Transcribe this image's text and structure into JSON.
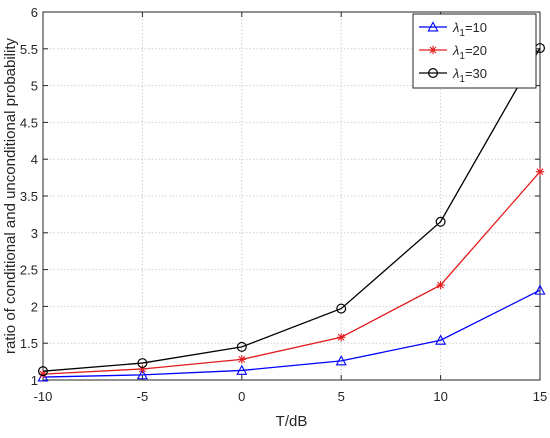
{
  "chart_data": {
    "type": "line",
    "title": "",
    "xlabel": "T/dB",
    "ylabel": "ratio of conditional and unconditional probability",
    "x": [
      -10,
      -5,
      0,
      5,
      10,
      15
    ],
    "xlim": [
      -10,
      15
    ],
    "ylim": [
      1,
      6
    ],
    "xticks": [
      -10,
      -5,
      0,
      5,
      10,
      15
    ],
    "yticks": [
      1,
      1.5,
      2,
      2.5,
      3,
      3.5,
      4,
      4.5,
      5,
      5.5,
      6
    ],
    "xtick_labels": [
      "-10",
      "-5",
      "0",
      "5",
      "10",
      "15"
    ],
    "ytick_labels": [
      "1",
      "1.5",
      "2",
      "2.5",
      "3",
      "3.5",
      "4",
      "4.5",
      "5",
      "5.5",
      "6"
    ],
    "grid": true,
    "grid_style": "dotted",
    "legend_position": "top-right",
    "series": [
      {
        "name": "λ1=10",
        "legend_symbol": "λ",
        "legend_sub": "1",
        "legend_rest": "=10",
        "color": "#0000ff",
        "marker": "triangle",
        "values": [
          1.04,
          1.07,
          1.13,
          1.26,
          1.54,
          2.22
        ]
      },
      {
        "name": "λ1=20",
        "legend_symbol": "λ",
        "legend_sub": "1",
        "legend_rest": "=20",
        "color": "#e31a1c",
        "marker": "asterisk",
        "values": [
          1.08,
          1.15,
          1.28,
          1.58,
          2.29,
          3.83
        ]
      },
      {
        "name": "λ1=30",
        "legend_symbol": "λ",
        "legend_sub": "1",
        "legend_rest": "=30",
        "color": "#000000",
        "marker": "circle",
        "values": [
          1.12,
          1.23,
          1.45,
          1.97,
          3.15,
          5.51
        ]
      }
    ]
  }
}
